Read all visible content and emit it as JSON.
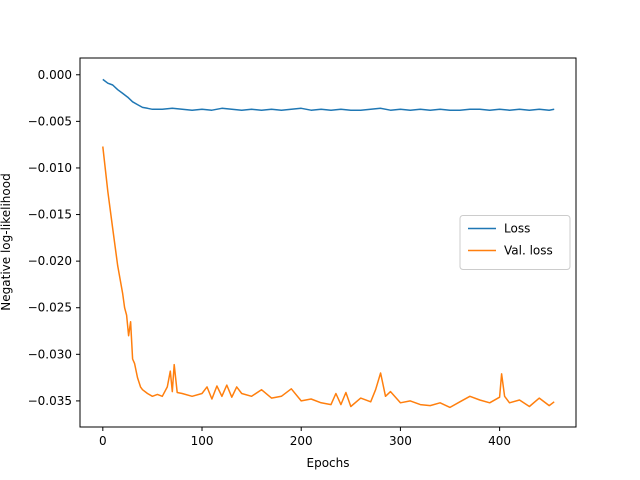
{
  "chart_data": {
    "type": "line",
    "title": "",
    "xlabel": "Epochs",
    "ylabel": "Negative log-likelihood",
    "xlim": [
      -23,
      477
    ],
    "ylim": [
      -0.0378,
      0.0018
    ],
    "xticks": [
      0,
      100,
      200,
      300,
      400
    ],
    "xtick_labels": [
      "0",
      "100",
      "200",
      "300",
      "400"
    ],
    "yticks": [
      0.0,
      -0.005,
      -0.01,
      -0.015,
      -0.02,
      -0.025,
      -0.03,
      -0.035
    ],
    "ytick_labels": [
      "0.000",
      "−0.005",
      "−0.010",
      "−0.015",
      "−0.020",
      "−0.025",
      "−0.030",
      "−0.035"
    ],
    "grid": false,
    "legend_position": "center-right",
    "series": [
      {
        "name": "Loss",
        "color": "#1f77b4",
        "x": [
          0,
          5,
          10,
          15,
          20,
          25,
          30,
          35,
          40,
          45,
          50,
          60,
          70,
          80,
          90,
          100,
          110,
          120,
          130,
          140,
          150,
          160,
          170,
          180,
          190,
          200,
          210,
          220,
          230,
          240,
          250,
          260,
          270,
          280,
          290,
          300,
          310,
          320,
          330,
          340,
          350,
          360,
          370,
          380,
          390,
          400,
          410,
          420,
          430,
          440,
          450,
          455
        ],
        "y": [
          -0.0005,
          -0.0009,
          -0.0011,
          -0.0016,
          -0.002,
          -0.0024,
          -0.0029,
          -0.0032,
          -0.0035,
          -0.0036,
          -0.0037,
          -0.0037,
          -0.0036,
          -0.0037,
          -0.0038,
          -0.0037,
          -0.0038,
          -0.0036,
          -0.0037,
          -0.0038,
          -0.0037,
          -0.0038,
          -0.0037,
          -0.0038,
          -0.0037,
          -0.0036,
          -0.0038,
          -0.0037,
          -0.0038,
          -0.0037,
          -0.0038,
          -0.0038,
          -0.0037,
          -0.0036,
          -0.0038,
          -0.0037,
          -0.0038,
          -0.0037,
          -0.0038,
          -0.0037,
          -0.0038,
          -0.0038,
          -0.0037,
          -0.0037,
          -0.0038,
          -0.0037,
          -0.0038,
          -0.0037,
          -0.0038,
          -0.0037,
          -0.0038,
          -0.0037
        ]
      },
      {
        "name": "Val. loss",
        "color": "#ff7f0e",
        "x": [
          0,
          5,
          10,
          15,
          20,
          22,
          24,
          26,
          28,
          30,
          32,
          35,
          38,
          40,
          45,
          50,
          55,
          60,
          65,
          68,
          70,
          72,
          75,
          80,
          90,
          100,
          105,
          110,
          115,
          120,
          125,
          130,
          135,
          140,
          150,
          160,
          170,
          180,
          190,
          200,
          210,
          220,
          230,
          235,
          240,
          245,
          250,
          260,
          270,
          275,
          280,
          285,
          290,
          300,
          310,
          320,
          330,
          340,
          350,
          360,
          370,
          380,
          390,
          400,
          402,
          405,
          410,
          420,
          430,
          440,
          450,
          455
        ],
        "y": [
          -0.0077,
          -0.0125,
          -0.0165,
          -0.0205,
          -0.0235,
          -0.025,
          -0.0258,
          -0.028,
          -0.0265,
          -0.0305,
          -0.031,
          -0.0325,
          -0.0335,
          -0.0338,
          -0.0342,
          -0.0345,
          -0.0343,
          -0.0345,
          -0.0335,
          -0.0318,
          -0.034,
          -0.0311,
          -0.0341,
          -0.0342,
          -0.0345,
          -0.0342,
          -0.0335,
          -0.0348,
          -0.0334,
          -0.0345,
          -0.0333,
          -0.0346,
          -0.0335,
          -0.0342,
          -0.0345,
          -0.0338,
          -0.0347,
          -0.0345,
          -0.0337,
          -0.035,
          -0.0348,
          -0.0352,
          -0.0354,
          -0.0342,
          -0.0354,
          -0.0341,
          -0.0356,
          -0.0347,
          -0.0351,
          -0.0338,
          -0.032,
          -0.0345,
          -0.034,
          -0.0352,
          -0.035,
          -0.0354,
          -0.0355,
          -0.0352,
          -0.0357,
          -0.0351,
          -0.0345,
          -0.0349,
          -0.0352,
          -0.0346,
          -0.0321,
          -0.0345,
          -0.0352,
          -0.0349,
          -0.0356,
          -0.0347,
          -0.0355,
          -0.0351
        ]
      }
    ]
  }
}
